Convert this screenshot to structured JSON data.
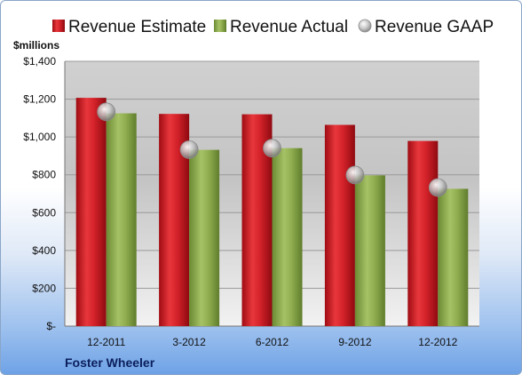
{
  "chart_data": {
    "type": "bar",
    "unit_label": "$millions",
    "categories": [
      "12-2011",
      "3-2012",
      "6-2012",
      "9-2012",
      "12-2012"
    ],
    "series": [
      {
        "name": "Revenue Estimate",
        "kind": "bar",
        "color": "#d8202a",
        "values": [
          1207,
          1122,
          1120,
          1064,
          979
        ]
      },
      {
        "name": "Revenue Actual",
        "kind": "bar",
        "color": "#8fad4e",
        "values": [
          1125,
          932,
          941,
          797,
          726
        ]
      },
      {
        "name": "Revenue GAAP",
        "kind": "marker",
        "color": "#b9b9b9",
        "values": [
          1133,
          933,
          941,
          799,
          733
        ]
      }
    ],
    "yticks": [
      0,
      200,
      400,
      600,
      800,
      1000,
      1200,
      1400
    ],
    "ytick_labels": [
      "$-",
      "$200",
      "$400",
      "$600",
      "$800",
      "$1,000",
      "$1,200",
      "$1,400"
    ],
    "ylim": [
      0,
      1400
    ],
    "grid": true,
    "legend_position": "top"
  },
  "footer": {
    "company": "Foster Wheeler"
  }
}
